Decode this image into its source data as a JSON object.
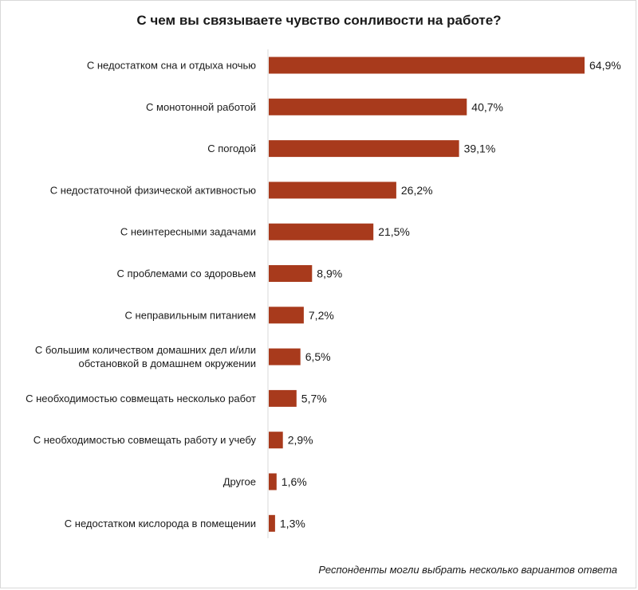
{
  "chart_data": {
    "type": "bar",
    "orientation": "horizontal",
    "title": "С чем вы связываете чувство сонливости на работе?",
    "footnote": "Респонденты могли выбрать несколько вариантов ответа",
    "categories": [
      [
        "С недостатком сна и отдыха ночью"
      ],
      [
        "С монотонной работой"
      ],
      [
        "С погодой"
      ],
      [
        "С недостаточной физической активностью"
      ],
      [
        "С неинтересными задачами"
      ],
      [
        "С проблемами со здоровьем"
      ],
      [
        "С неправильным питанием"
      ],
      [
        "С большим количеством домашних дел и/или",
        "обстановкой в домашнем окружении"
      ],
      [
        "С необходимостью совмещать несколько работ"
      ],
      [
        "С необходимостью совмещать работу и учебу"
      ],
      [
        "Другое"
      ],
      [
        "С недостатком кислорода в помещении"
      ]
    ],
    "values": [
      64.9,
      40.7,
      39.1,
      26.2,
      21.5,
      8.9,
      7.2,
      6.5,
      5.7,
      2.9,
      1.6,
      1.3
    ],
    "value_labels": [
      "64,9%",
      "40,7%",
      "39,1%",
      "26,2%",
      "21,5%",
      "8,9%",
      "7,2%",
      "6,5%",
      "5,7%",
      "2,9%",
      "1,6%",
      "1,3%"
    ],
    "bar_color": "#a83a1c",
    "axis_color": "#d9d9d9",
    "xlim": [
      0,
      64.9
    ],
    "grid": false,
    "legend": "none"
  }
}
